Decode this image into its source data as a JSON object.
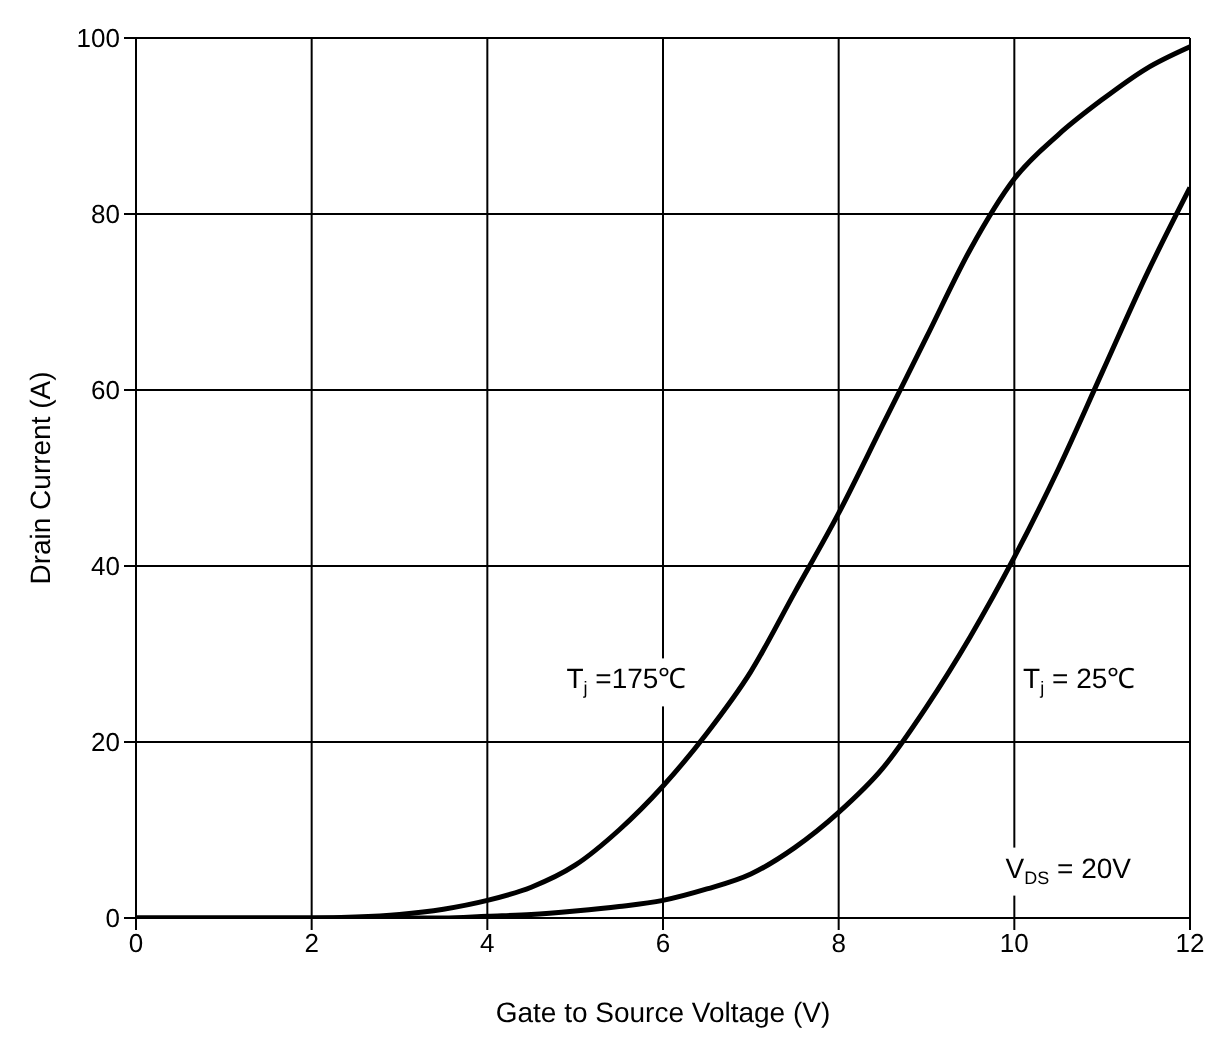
{
  "chart_data": {
    "type": "line",
    "xlabel": "Gate to Source Voltage (V)",
    "ylabel": "Drain Current (A)",
    "x": [
      0,
      1,
      2,
      2.5,
      3,
      3.5,
      4,
      4.5,
      5,
      5.5,
      6,
      6.5,
      7,
      7.5,
      8,
      8.5,
      9,
      9.5,
      10,
      10.5,
      11,
      11.5,
      12
    ],
    "series": [
      {
        "color": "#000000",
        "values": [
          0,
          0,
          0,
          0.1,
          0.4,
          1,
          2,
          3.5,
          6,
          10,
          15,
          21,
          28,
          37,
          46,
          56,
          66,
          76,
          84,
          89,
          93,
          96.5,
          99
        ]
      },
      {
        "color": "#000000",
        "values": [
          0,
          0,
          0,
          0,
          0,
          0,
          0.2,
          0.4,
          0.8,
          1.3,
          2,
          3.3,
          5,
          8,
          12,
          17,
          24,
          32,
          41,
          51,
          62,
          73,
          83
        ]
      }
    ],
    "xlim": [
      0,
      12
    ],
    "xticks": [
      0,
      2,
      4,
      6,
      8,
      10,
      12
    ],
    "ylim": [
      0,
      100
    ],
    "yticks": [
      0,
      20,
      40,
      60,
      80,
      100
    ],
    "grid": true,
    "marker": "none",
    "line_style": "solid",
    "annotations": [
      "T$_{j}$ =175℃",
      "T$_{j}$ = 25℃",
      "V$_{DS}$ = 20V"
    ]
  }
}
